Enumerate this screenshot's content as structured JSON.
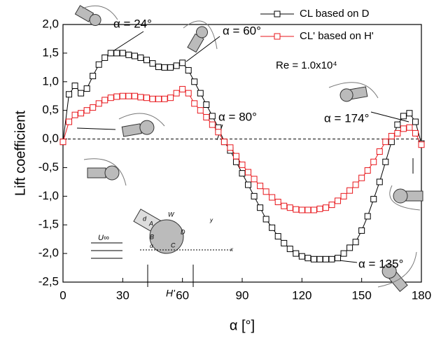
{
  "chart_data": {
    "type": "line",
    "x_label": "α [°]",
    "y_label": "Lift coefficient",
    "x": [
      0,
      3,
      6,
      9,
      12,
      15,
      18,
      21,
      24,
      27,
      30,
      33,
      36,
      39,
      42,
      45,
      48,
      51,
      54,
      57,
      60,
      63,
      66,
      69,
      72,
      75,
      78,
      81,
      84,
      87,
      90,
      93,
      96,
      99,
      102,
      105,
      108,
      111,
      114,
      117,
      120,
      123,
      126,
      129,
      132,
      135,
      138,
      141,
      144,
      147,
      150,
      153,
      156,
      159,
      162,
      165,
      168,
      171,
      174,
      177,
      180
    ],
    "series": [
      {
        "name": "CL based on D",
        "color": "#000000",
        "values": [
          -0.05,
          0.78,
          0.93,
          0.8,
          0.88,
          1.1,
          1.3,
          1.42,
          1.5,
          1.5,
          1.5,
          1.47,
          1.45,
          1.42,
          1.38,
          1.32,
          1.26,
          1.25,
          1.25,
          1.28,
          1.33,
          1.2,
          1.0,
          0.8,
          0.6,
          0.4,
          0.2,
          -0.05,
          -0.2,
          -0.4,
          -0.6,
          -0.8,
          -1.0,
          -1.2,
          -1.4,
          -1.55,
          -1.7,
          -1.82,
          -1.92,
          -2.0,
          -2.05,
          -2.08,
          -2.1,
          -2.1,
          -2.1,
          -2.1,
          -2.08,
          -2.0,
          -1.9,
          -1.8,
          -1.6,
          -1.35,
          -1.05,
          -0.75,
          -0.4,
          -0.05,
          0.25,
          0.4,
          0.45,
          0.3,
          -0.08
        ]
      },
      {
        "name": "CL' based on H'",
        "color": "#e8161b",
        "values": [
          -0.05,
          0.3,
          0.42,
          0.45,
          0.5,
          0.55,
          0.62,
          0.68,
          0.72,
          0.74,
          0.75,
          0.75,
          0.75,
          0.73,
          0.72,
          0.7,
          0.7,
          0.7,
          0.72,
          0.8,
          0.87,
          0.8,
          0.62,
          0.5,
          0.38,
          0.25,
          0.12,
          -0.05,
          -0.15,
          -0.3,
          -0.45,
          -0.58,
          -0.7,
          -0.82,
          -0.92,
          -1.02,
          -1.1,
          -1.17,
          -1.2,
          -1.23,
          -1.24,
          -1.24,
          -1.24,
          -1.22,
          -1.2,
          -1.15,
          -1.08,
          -1.0,
          -0.9,
          -0.8,
          -0.68,
          -0.55,
          -0.4,
          -0.22,
          -0.05,
          0.05,
          0.1,
          0.18,
          0.2,
          0.1,
          -0.1
        ]
      }
    ],
    "xlim": [
      0,
      180
    ],
    "xticks": [
      0,
      30,
      60,
      90,
      120,
      150,
      180
    ],
    "ylim": [
      -2.5,
      2.0
    ],
    "yticks": [
      {
        "value": -2.5,
        "label": "-2,5"
      },
      {
        "value": -2.0,
        "label": "-2,0"
      },
      {
        "value": -1.5,
        "label": "-1,5"
      },
      {
        "value": -1.0,
        "label": "-1,0"
      },
      {
        "value": -0.5,
        "label": "-0,5"
      },
      {
        "value": 0.0,
        "label": "0,0"
      },
      {
        "value": 0.5,
        "label": "0,5"
      },
      {
        "value": 1.0,
        "label": "1,0"
      },
      {
        "value": 1.5,
        "label": "1,5"
      },
      {
        "value": 2.0,
        "label": "2,0"
      }
    ],
    "annotations": [
      "α = 24°",
      "α = 60°",
      "Re = 1.0x10⁴",
      "α = 80°",
      "α = 174°",
      "α = 135°"
    ],
    "schematic_labels": [
      "U∞",
      "H'",
      "A",
      "B",
      "C",
      "D",
      "W",
      "d",
      "x",
      "y",
      "α"
    ]
  }
}
